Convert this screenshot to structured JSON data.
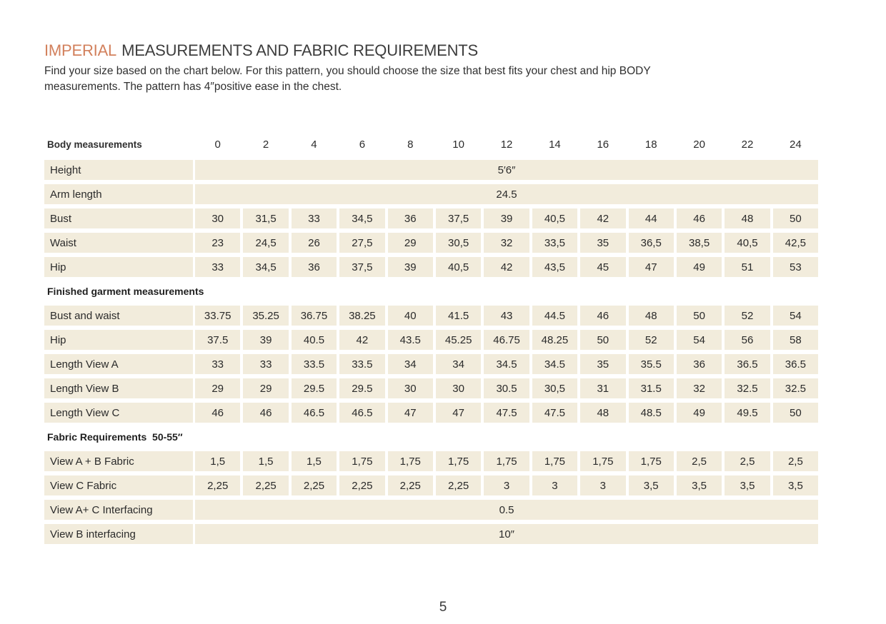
{
  "colors": {
    "accent": "#d2805c",
    "cell_background": "#f2ecdc",
    "heading_text": "#3d3d3d",
    "body_text": "#2f2f2f"
  },
  "header": {
    "title_accent": "IMPERIAL",
    "title_rest": "MEASUREMENTS AND FABRIC REQUIREMENTS",
    "intro_line1": "Find your size based on the chart below. For this pattern, you should choose the size that best fits your chest and hip BODY",
    "intro_line2": "measurements. The pattern has 4″positive ease in the chest."
  },
  "table": {
    "header_label": "Body measurements",
    "sizes": [
      "0",
      "2",
      "4",
      "6",
      "8",
      "10",
      "12",
      "14",
      "16",
      "18",
      "20",
      "22",
      "24"
    ],
    "rows": [
      {
        "type": "span",
        "label": "Height",
        "value": "5′6″"
      },
      {
        "type": "span",
        "label": "Arm length",
        "value": "24.5"
      },
      {
        "type": "cells",
        "label": "Bust",
        "values": [
          "30",
          "31,5",
          "33",
          "34,5",
          "36",
          "37,5",
          "39",
          "40,5",
          "42",
          "44",
          "46",
          "48",
          "50"
        ]
      },
      {
        "type": "cells",
        "label": "Waist",
        "values": [
          "23",
          "24,5",
          "26",
          "27,5",
          "29",
          "30,5",
          "32",
          "33,5",
          "35",
          "36,5",
          "38,5",
          "40,5",
          "42,5"
        ]
      },
      {
        "type": "cells",
        "label": "Hip",
        "values": [
          "33",
          "34,5",
          "36",
          "37,5",
          "39",
          "40,5",
          "42",
          "43,5",
          "45",
          "47",
          "49",
          "51",
          "53"
        ]
      },
      {
        "type": "section",
        "label": "Finished garment measurements"
      },
      {
        "type": "cells",
        "label": "Bust and waist",
        "values": [
          "33.75",
          "35.25",
          "36.75",
          "38.25",
          "40",
          "41.5",
          "43",
          "44.5",
          "46",
          "48",
          "50",
          "52",
          "54"
        ]
      },
      {
        "type": "cells",
        "label": "Hip",
        "values": [
          "37.5",
          "39",
          "40.5",
          "42",
          "43.5",
          "45.25",
          "46.75",
          "48.25",
          "50",
          "52",
          "54",
          "56",
          "58"
        ]
      },
      {
        "type": "cells",
        "label": "Length View A",
        "values": [
          "33",
          "33",
          "33.5",
          "33.5",
          "34",
          "34",
          "34.5",
          "34.5",
          "35",
          "35.5",
          "36",
          "36.5",
          "36.5"
        ]
      },
      {
        "type": "cells",
        "label": "Length View B",
        "values": [
          "29",
          "29",
          "29.5",
          "29.5",
          "30",
          "30",
          "30.5",
          "30,5",
          "31",
          "31.5",
          "32",
          "32.5",
          "32.5"
        ]
      },
      {
        "type": "cells",
        "label": "Length View C",
        "values": [
          "46",
          "46",
          "46.5",
          "46.5",
          "47",
          "47",
          "47.5",
          "47.5",
          "48",
          "48.5",
          "49",
          "49.5",
          "50"
        ]
      },
      {
        "type": "section",
        "label": "Fabric Requirements  50-55″"
      },
      {
        "type": "cells",
        "label": "View A + B Fabric",
        "values": [
          "1,5",
          "1,5",
          "1,5",
          "1,75",
          "1,75",
          "1,75",
          "1,75",
          "1,75",
          "1,75",
          "1,75",
          "2,5",
          "2,5",
          "2,5"
        ]
      },
      {
        "type": "cells",
        "label": "View C Fabric",
        "values": [
          "2,25",
          "2,25",
          "2,25",
          "2,25",
          "2,25",
          "2,25",
          "3",
          "3",
          "3",
          "3,5",
          "3,5",
          "3,5",
          "3,5"
        ]
      },
      {
        "type": "span",
        "label": "View A+ C Interfacing",
        "value": "0.5"
      },
      {
        "type": "span",
        "label": "View B interfacing",
        "value": "10″"
      }
    ]
  },
  "footer": {
    "page_number": "5"
  }
}
